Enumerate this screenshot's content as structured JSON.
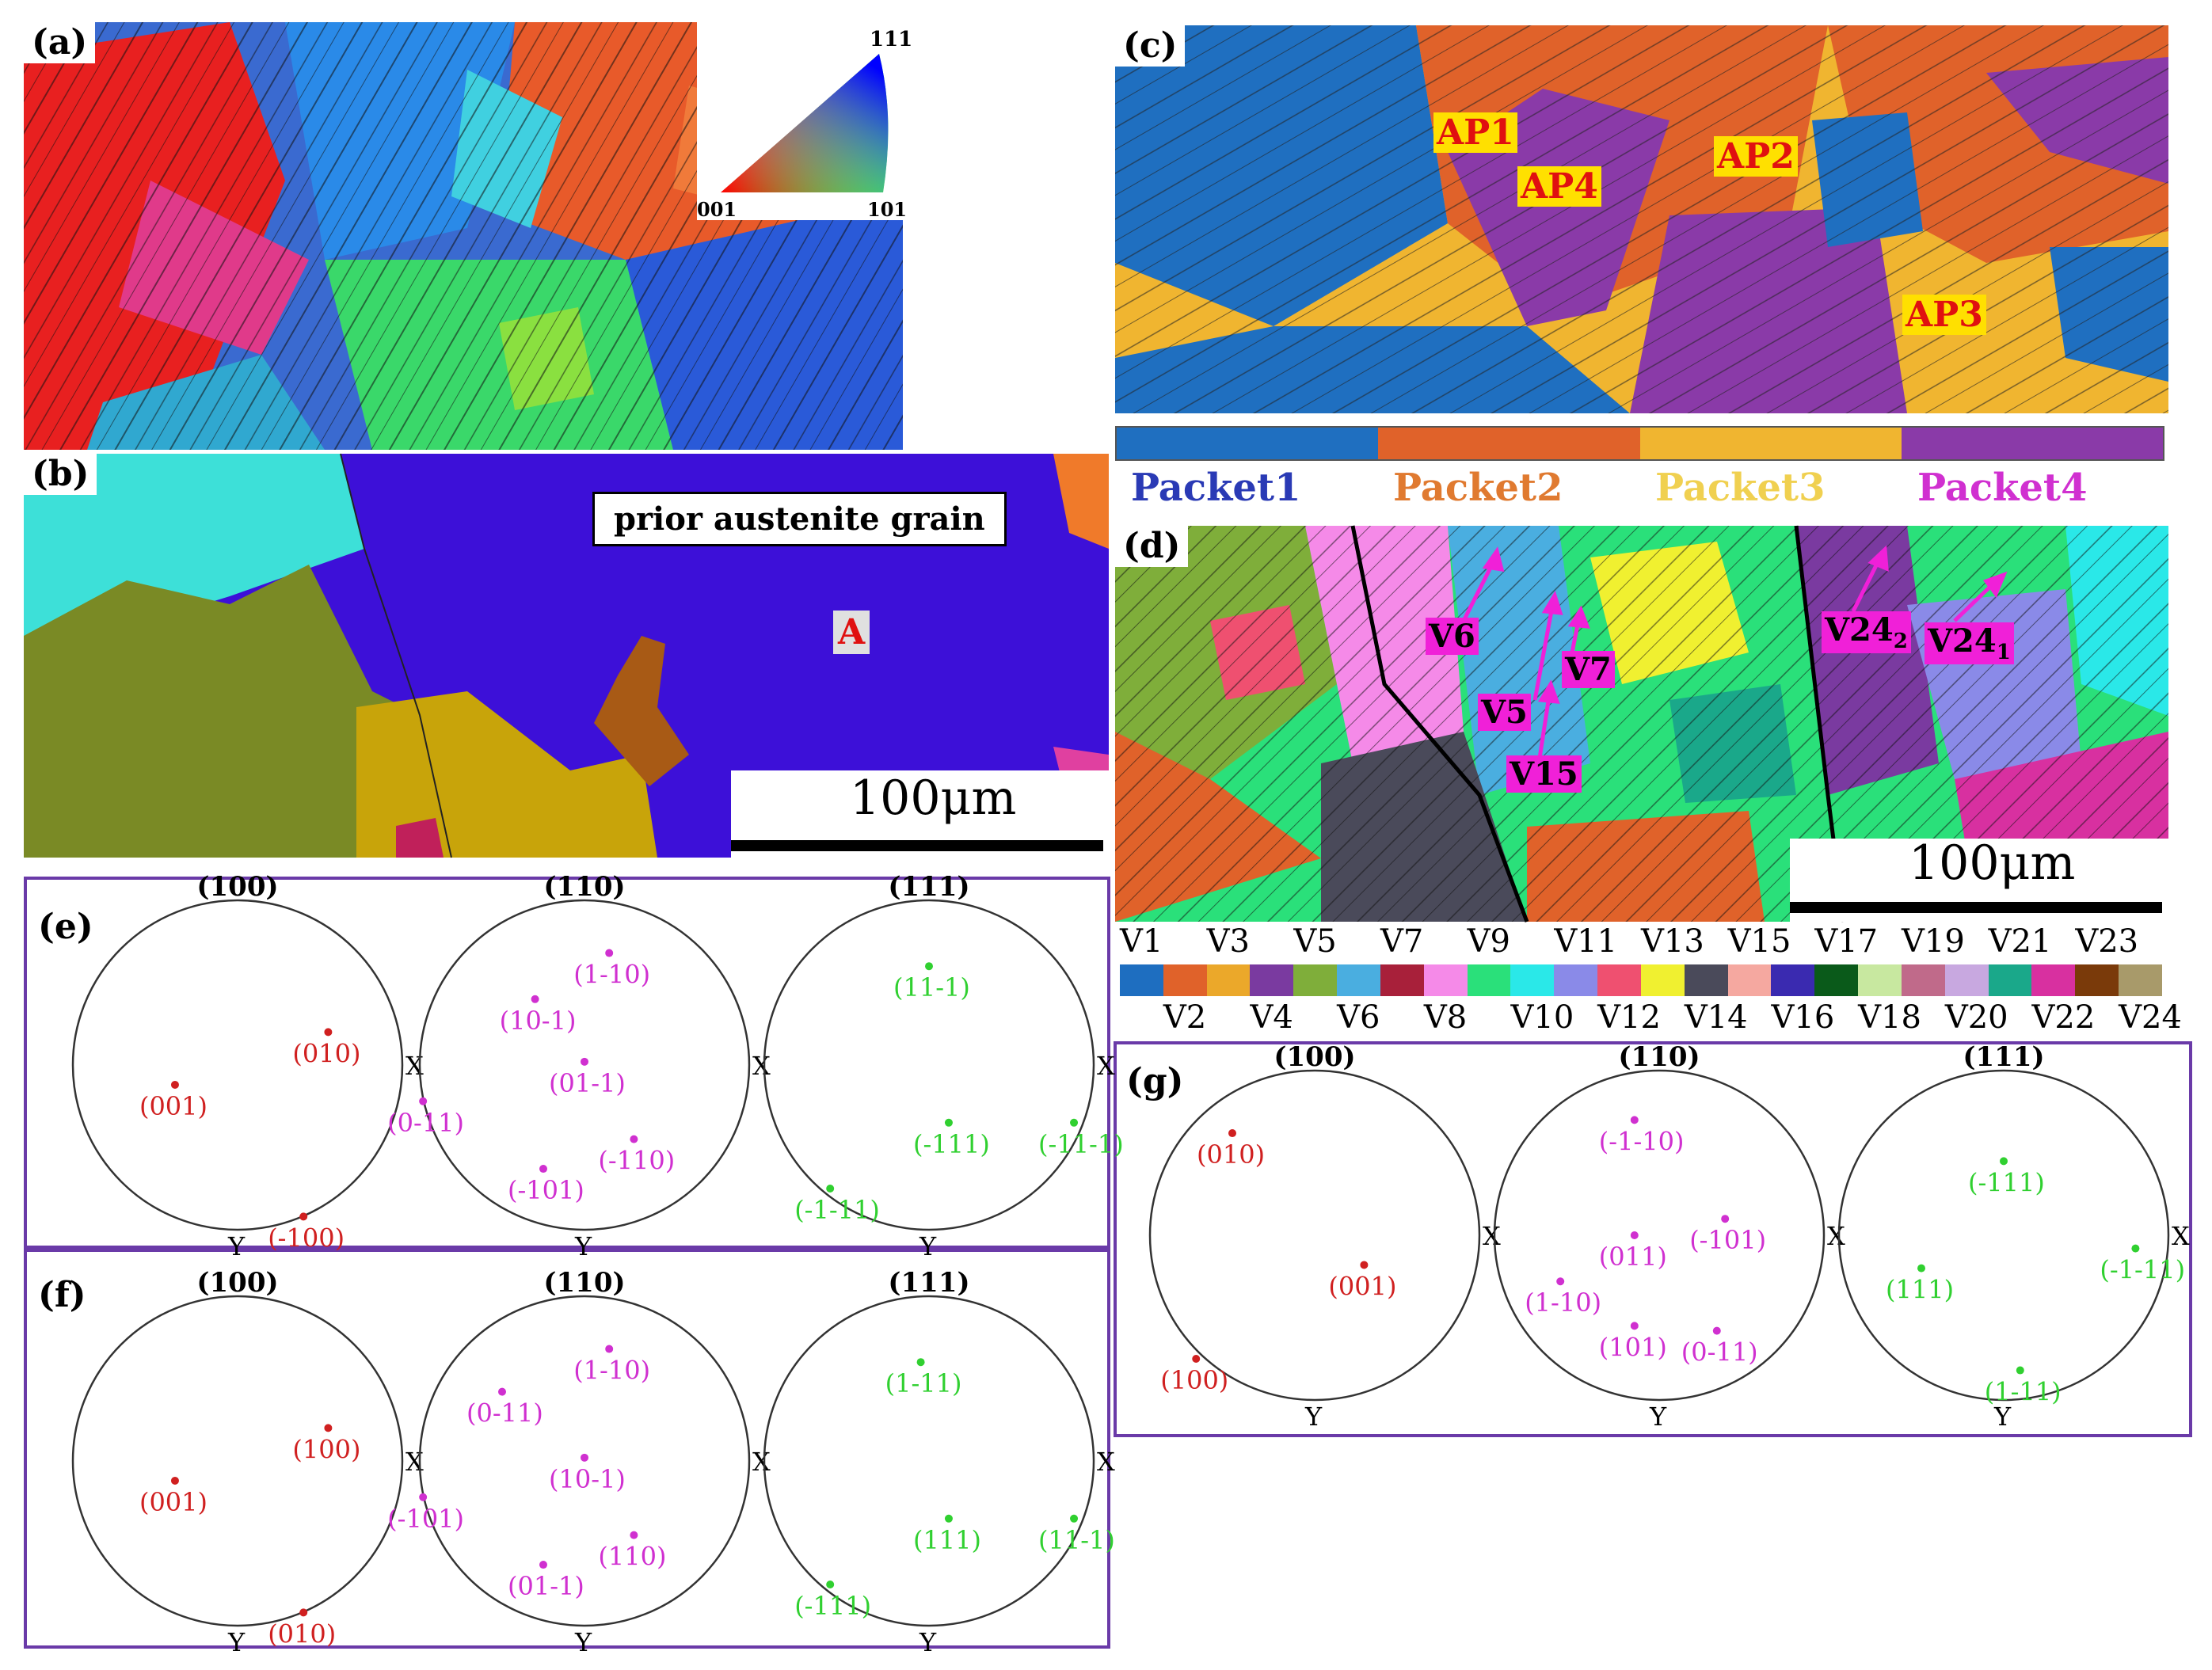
{
  "panels": {
    "a": {
      "label": "(a)",
      "ipf_labels": {
        "top": "111",
        "left": "001",
        "right": "101"
      }
    },
    "b": {
      "label": "(b)",
      "callout": "prior austenite grain",
      "grain_tag": "A",
      "scalebar": "100μm"
    },
    "c": {
      "label": "(c)",
      "tags": [
        "AP1",
        "AP4",
        "AP2",
        "AP3"
      ]
    },
    "d": {
      "label": "(d)",
      "tags": [
        "V6",
        "V7",
        "V5",
        "V15",
        "V24",
        "V24"
      ],
      "subscripts": [
        "2",
        "1"
      ],
      "scalebar": "100μm"
    },
    "e": {
      "label": "(e)"
    },
    "f": {
      "label": "(f)"
    },
    "g": {
      "label": "(g)"
    }
  },
  "packet_legend": {
    "colors": [
      "#1f6fc0",
      "#e0622a",
      "#f0b530",
      "#8a3aa8"
    ],
    "names": [
      "Packet1",
      "Packet2",
      "Packet3",
      "Packet4"
    ],
    "name_colors": [
      "#2a3ab5",
      "#e07a30",
      "#f0d050",
      "#d030d0"
    ]
  },
  "variant_legend": {
    "odd": [
      "V1",
      "V3",
      "V5",
      "V7",
      "V9",
      "V11",
      "V13",
      "V15",
      "V17",
      "V19",
      "V21",
      "V23"
    ],
    "even": [
      "V2",
      "V4",
      "V6",
      "V8",
      "V10",
      "V12",
      "V14",
      "V16",
      "V18",
      "V20",
      "V22",
      "V24"
    ],
    "colors": [
      "#1e6ec0",
      "#e0622a",
      "#eba82a",
      "#7a3aa0",
      "#7fae3a",
      "#4aaee0",
      "#a8203a",
      "#f58ae8",
      "#2ae07a",
      "#2ae8e8",
      "#8a8ae8",
      "#ef5070",
      "#f0f030",
      "#4a4a5a",
      "#f5a8a0",
      "#3a2ab0",
      "#0a5a1a",
      "#c8e8a0",
      "#c06a8a",
      "#c8a8e0",
      "#1aa88a",
      "#d830a0",
      "#7a3a0a",
      "#a89a6a"
    ]
  },
  "pole_figures": {
    "headers": [
      "(100)",
      "(110)",
      "(111)"
    ],
    "axis_x": "X",
    "axis_y": "Y",
    "e": {
      "p100": [
        {
          "t": "(010)",
          "c": "#d02020"
        },
        {
          "t": "(001)",
          "c": "#d02020"
        },
        {
          "t": "(-100)",
          "c": "#d02020"
        }
      ],
      "p110": [
        {
          "t": "(1-10)",
          "c": "#d030d0"
        },
        {
          "t": "(10-1)",
          "c": "#d030d0"
        },
        {
          "t": "(01-1)",
          "c": "#d030d0"
        },
        {
          "t": "(0-11)",
          "c": "#d030d0"
        },
        {
          "t": "(-110)",
          "c": "#d030d0"
        },
        {
          "t": "(-101)",
          "c": "#d030d0"
        }
      ],
      "p111": [
        {
          "t": "(11-1)",
          "c": "#30d030"
        },
        {
          "t": "(-111)",
          "c": "#30d030"
        },
        {
          "t": "(-11-1)",
          "c": "#30d030"
        },
        {
          "t": "(-1-11)",
          "c": "#30d030"
        }
      ]
    },
    "f": {
      "p100": [
        {
          "t": "(100)",
          "c": "#d02020"
        },
        {
          "t": "(001)",
          "c": "#d02020"
        },
        {
          "t": "(010)",
          "c": "#d02020"
        }
      ],
      "p110": [
        {
          "t": "(1-10)",
          "c": "#d030d0"
        },
        {
          "t": "(0-11)",
          "c": "#d030d0"
        },
        {
          "t": "(10-1)",
          "c": "#d030d0"
        },
        {
          "t": "(-101)",
          "c": "#d030d0"
        },
        {
          "t": "(110)",
          "c": "#d030d0"
        },
        {
          "t": "(01-1)",
          "c": "#d030d0"
        }
      ],
      "p111": [
        {
          "t": "(1-11)",
          "c": "#30d030"
        },
        {
          "t": "(11-1)",
          "c": "#30d030"
        },
        {
          "t": "(111)",
          "c": "#30d030"
        },
        {
          "t": "(-111)",
          "c": "#30d030"
        }
      ]
    },
    "g": {
      "p100": [
        {
          "t": "(010)",
          "c": "#d02020"
        },
        {
          "t": "(001)",
          "c": "#d02020"
        },
        {
          "t": "(100)",
          "c": "#d02020"
        }
      ],
      "p110": [
        {
          "t": "(-1-10)",
          "c": "#d030d0"
        },
        {
          "t": "(011)",
          "c": "#d030d0"
        },
        {
          "t": "(-101)",
          "c": "#d030d0"
        },
        {
          "t": "(1-10)",
          "c": "#d030d0"
        },
        {
          "t": "(101)",
          "c": "#d030d0"
        },
        {
          "t": "(0-11)",
          "c": "#d030d0"
        }
      ],
      "p111": [
        {
          "t": "(-111)",
          "c": "#30d030"
        },
        {
          "t": "(-1-11)",
          "c": "#30d030"
        },
        {
          "t": "(111)",
          "c": "#30d030"
        },
        {
          "t": "(1-11)",
          "c": "#30d030"
        }
      ]
    }
  }
}
